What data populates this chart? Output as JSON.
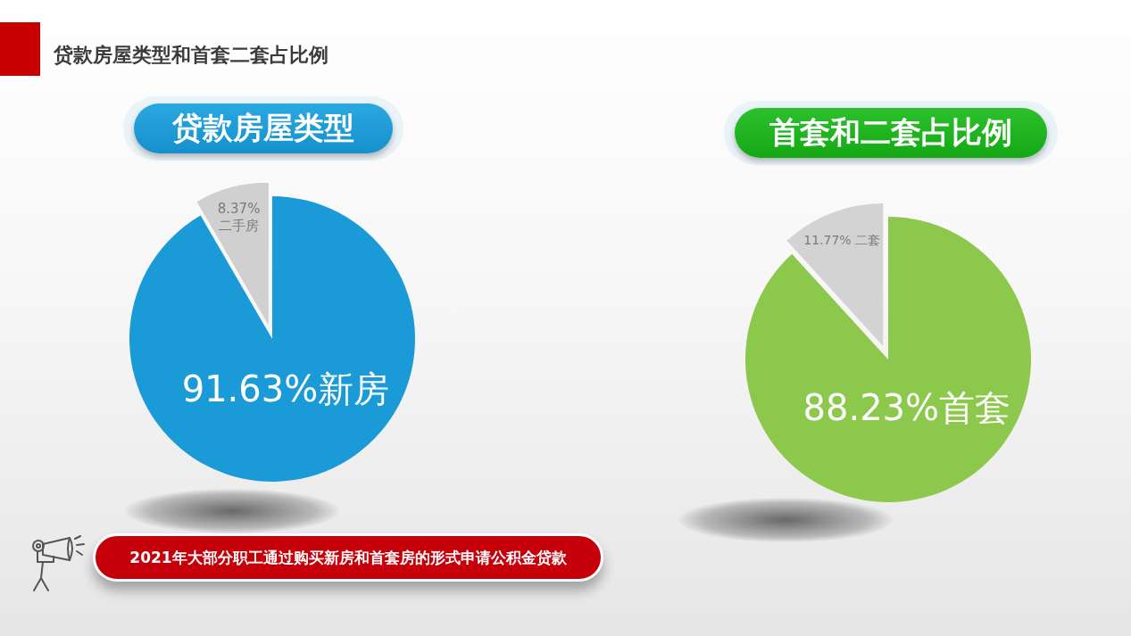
{
  "chart_data": [
    {
      "type": "pie",
      "title": "贷款房屋类型",
      "categories": [
        "新房",
        "二手房"
      ],
      "values": [
        91.63,
        8.37
      ],
      "colors": [
        "#1a9bd8",
        "#d0d0d0"
      ],
      "value_labels": [
        "91.63%",
        "8.37%"
      ],
      "annotations": [
        "贷款房屋类型和首套二套占比例",
        "2021年大部分职工通过购买新房和首套房的形式申请公积金贷款"
      ]
    },
    {
      "type": "pie",
      "title": "首套和二套占比例",
      "categories": [
        "首套",
        "二套"
      ],
      "values": [
        88.23,
        11.77
      ],
      "colors": [
        "#8cc84b",
        "#d3d3d3"
      ],
      "value_labels": [
        "88.23%",
        "11.77%"
      ]
    }
  ]
}
